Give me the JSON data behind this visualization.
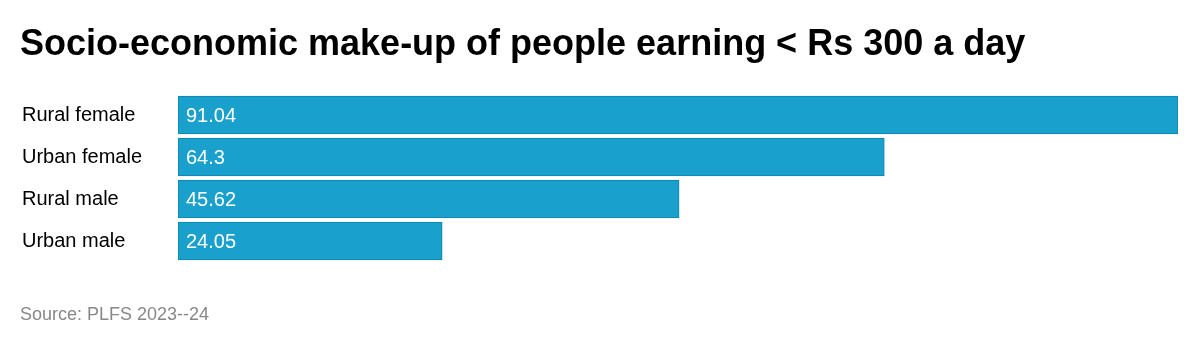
{
  "chart_data": {
    "type": "bar",
    "orientation": "horizontal",
    "title": "Socio-economic make-up of people earning < Rs 300 a day",
    "categories": [
      "Rural female",
      "Urban female",
      "Rural male",
      "Urban male"
    ],
    "values": [
      91.04,
      64.3,
      45.62,
      24.05
    ],
    "color": "#1aa0cc",
    "data_labels": true,
    "legend": false,
    "annotations": [
      "Source: PLFS 2023--24"
    ]
  }
}
